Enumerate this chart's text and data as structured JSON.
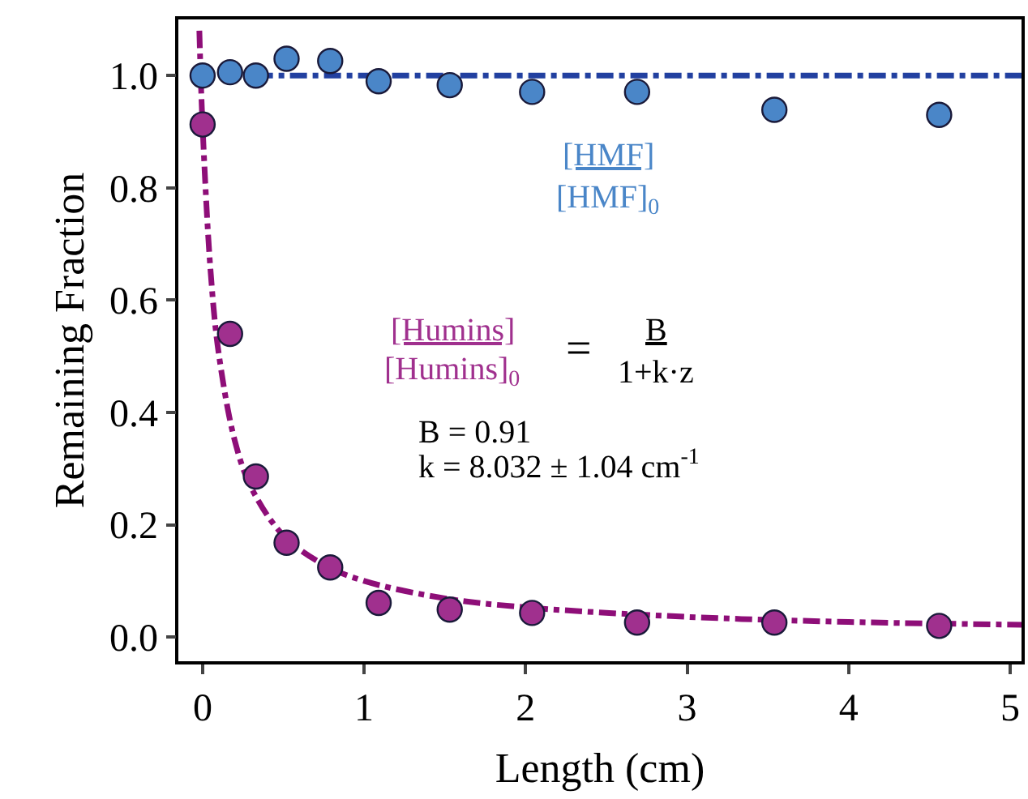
{
  "chart_data": {
    "type": "scatter",
    "xlabel": "Length (cm)",
    "ylabel": "Remaining Fraction",
    "x": [
      0,
      0.17,
      0.33,
      0.52,
      0.79,
      1.09,
      1.53,
      2.04,
      2.69,
      3.54,
      4.56
    ],
    "series": [
      {
        "color": "#4a86c8",
        "values": [
          1.0,
          1.006,
          1.0,
          1.03,
          1.026,
          0.99,
          0.983,
          0.971,
          0.971,
          0.939,
          0.93
        ]
      },
      {
        "color": "#a0308e",
        "values": [
          0.913,
          0.54,
          0.286,
          0.168,
          0.124,
          0.061,
          0.049,
          0.043,
          0.026,
          0.026,
          0.02
        ]
      },
      {
        "type": "line",
        "color": "#2240a0",
        "line_style": "dashed",
        "marker": "none",
        "x": [
          0.33,
          5.07
        ],
        "values": [
          1.0,
          1.0
        ]
      },
      {
        "type": "line",
        "color": "#8e0e78",
        "line_style": "dashed",
        "marker": "none",
        "x": [
          -0.02,
          0,
          0.05,
          0.1,
          0.2,
          0.3,
          0.5,
          0.75,
          1,
          1.5,
          2,
          3,
          4,
          5.07
        ],
        "values": [
          1.08,
          0.91,
          0.65,
          0.505,
          0.349,
          0.267,
          0.181,
          0.129,
          0.1,
          0.069,
          0.053,
          0.036,
          0.027,
          0.022
        ]
      }
    ],
    "marker": "circle",
    "xlim": [
      -0.15,
      5.07
    ],
    "ylim": [
      -0.043,
      1.1
    ],
    "xticks": [
      0,
      1,
      2,
      3,
      4,
      5
    ],
    "yticks": [
      {
        "value": 0,
        "label": "0.0"
      },
      {
        "value": 0.2,
        "label": "0.2"
      },
      {
        "value": 0.4,
        "label": "0.4"
      },
      {
        "value": 0.6,
        "label": "0.6"
      },
      {
        "value": 0.8,
        "label": "0.8"
      },
      {
        "value": 1.0,
        "label": "1.0"
      }
    ],
    "legend": false,
    "annotations": [
      "[HMF]",
      "[HMF]$_{0}$",
      "[Humins]",
      "[Humins]$_{0}$",
      "=",
      "B",
      "1+k·z",
      "B = 0.91",
      "k = 8.032 ± 1.04 cm$^{-1}$"
    ]
  }
}
